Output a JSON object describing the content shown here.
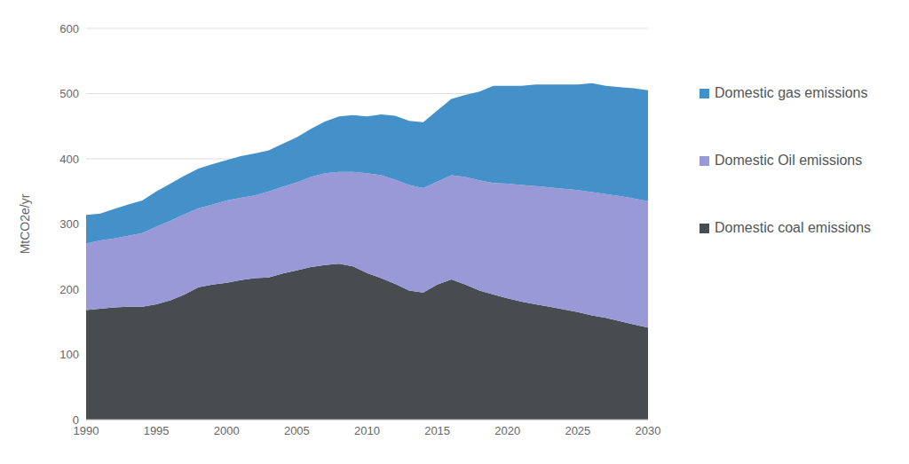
{
  "chart_data": {
    "type": "area",
    "stacked": true,
    "grid": true,
    "legend": "right",
    "y_label": "MtCO2e/yr",
    "x": [
      1990,
      1991,
      1992,
      1993,
      1994,
      1995,
      1996,
      1997,
      1998,
      1999,
      2000,
      2001,
      2002,
      2003,
      2004,
      2005,
      2006,
      2007,
      2008,
      2009,
      2010,
      2011,
      2012,
      2013,
      2014,
      2015,
      2016,
      2017,
      2018,
      2019,
      2020,
      2021,
      2022,
      2023,
      2024,
      2025,
      2026,
      2027,
      2028,
      2029,
      2030
    ],
    "xlim": [
      1990,
      2030
    ],
    "xticks": [
      1990,
      1995,
      2000,
      2005,
      2010,
      2015,
      2020,
      2025,
      2030
    ],
    "ylim": [
      0,
      600
    ],
    "yticks": [
      0,
      100,
      200,
      300,
      400,
      500,
      600
    ],
    "series": [
      {
        "name": "Domestic coal emissions",
        "color": "#474c50",
        "values": [
          168,
          170,
          172,
          173,
          173,
          177,
          183,
          192,
          203,
          207,
          210,
          214,
          217,
          218,
          224,
          229,
          234,
          237,
          239,
          235,
          225,
          217,
          208,
          198,
          195,
          207,
          215,
          207,
          198,
          192,
          186,
          181,
          177,
          173,
          169,
          165,
          160,
          156,
          151,
          146,
          141
        ]
      },
      {
        "name": "Domestic Oil emissions",
        "color": "#9999d8",
        "values": [
          102,
          105,
          106,
          109,
          113,
          119,
          122,
          123,
          121,
          123,
          126,
          126,
          127,
          132,
          133,
          135,
          138,
          141,
          141,
          145,
          153,
          158,
          160,
          162,
          160,
          158,
          160,
          165,
          169,
          171,
          176,
          179,
          181,
          183,
          185,
          187,
          189,
          190,
          192,
          193,
          194
        ]
      },
      {
        "name": "Domestic gas emissions",
        "color": "#4490c8",
        "values": [
          44,
          41,
          45,
          48,
          50,
          54,
          57,
          59,
          61,
          62,
          62,
          64,
          64,
          63,
          66,
          69,
          74,
          79,
          85,
          87,
          87,
          93,
          98,
          98,
          101,
          109,
          117,
          126,
          136,
          149,
          150,
          152,
          156,
          158,
          160,
          162,
          167,
          166,
          167,
          169,
          170
        ]
      }
    ]
  }
}
